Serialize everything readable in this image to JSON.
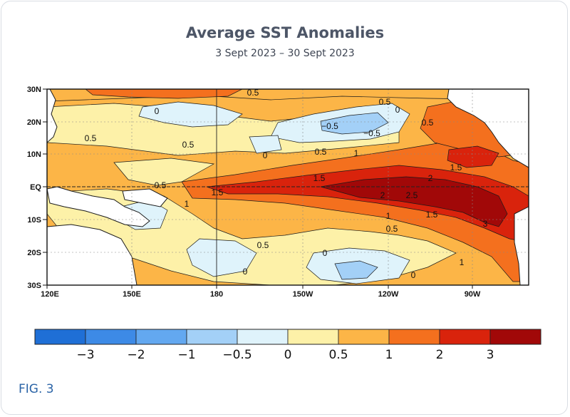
{
  "header": {
    "title": "Average SST Anomalies",
    "subtitle": "3 Sept 2023 – 30 Sept 2023"
  },
  "map": {
    "lat_ticks": [
      "30N",
      "20N",
      "10N",
      "EQ",
      "10S",
      "20S",
      "30S"
    ],
    "lon_ticks": [
      "120E",
      "150E",
      "180",
      "150W",
      "120W",
      "90W"
    ],
    "contour_labels": [
      "0.5",
      "0",
      "0.5",
      "0.5",
      "0",
      "0.5",
      "−0.5",
      "−0.5",
      "0.5",
      "0",
      "0.5",
      "1",
      "1.5",
      "1.5",
      "2",
      "1.5",
      "0.5",
      "1",
      "2",
      "2.5",
      "1",
      "1.5",
      "0.5",
      "3",
      "0.5",
      "0",
      "0",
      "1",
      "0"
    ],
    "colors": {
      "land": "#ffffff",
      "anom_neg3": "#1f6fd6",
      "anom_neg2": "#3d8ae6",
      "anom_neg1": "#63a8f0",
      "anom_neg05": "#a3d0f7",
      "anom_0": "#dff3fb",
      "anom_05": "#fdf1a8",
      "anom_1": "#fcb547",
      "anom_2": "#f4701e",
      "anom_3": "#d9230c",
      "anom_max": "#a10808"
    }
  },
  "colorbar": {
    "colors": [
      "#1f6fd6",
      "#3d8ae6",
      "#63a8f0",
      "#a3d0f7",
      "#dff3fb",
      "#fdf1a8",
      "#fcb547",
      "#f4701e",
      "#d9230c",
      "#a10808"
    ],
    "labels": [
      "−3",
      "−2",
      "−1",
      "−0.5",
      "0",
      "0.5",
      "1",
      "2",
      "3"
    ]
  },
  "footer": {
    "fig_label": "FIG. 3"
  }
}
